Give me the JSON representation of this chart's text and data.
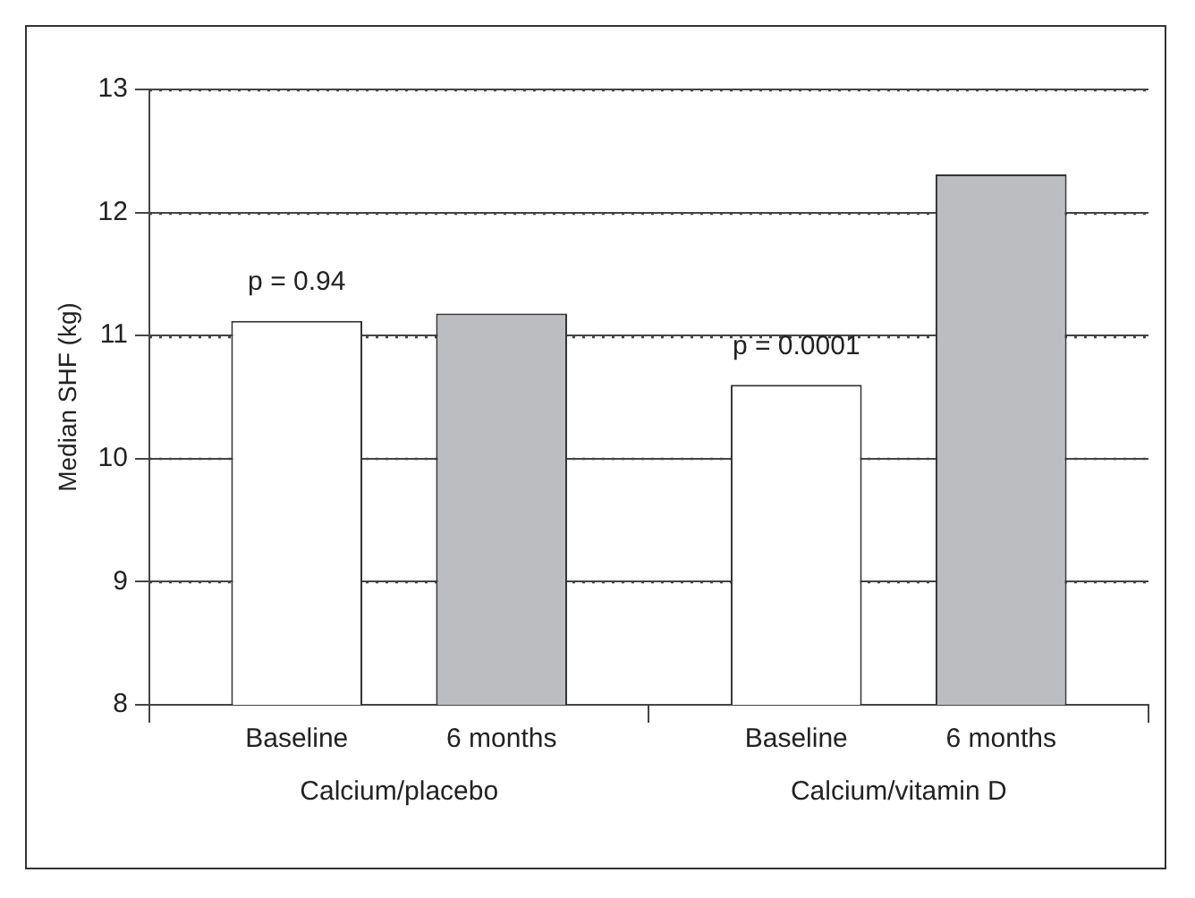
{
  "chart_data": {
    "type": "bar",
    "ylabel": "Median SHF (kg)",
    "categories": [
      "Calcium/placebo",
      "Calcium/vitamin D"
    ],
    "series": [
      {
        "name": "Baseline",
        "color": "#ffffff",
        "values": [
          11.12,
          10.6
        ]
      },
      {
        "name": "6 months",
        "color": "#bcbdc0",
        "values": [
          11.18,
          12.31
        ]
      }
    ],
    "ylim": [
      8,
      13
    ],
    "yticks": [
      8,
      9,
      10,
      11,
      12,
      13
    ],
    "grid": "y",
    "legend": false,
    "annotations": [
      "p = 0.94",
      "p = 0.0001"
    ]
  }
}
